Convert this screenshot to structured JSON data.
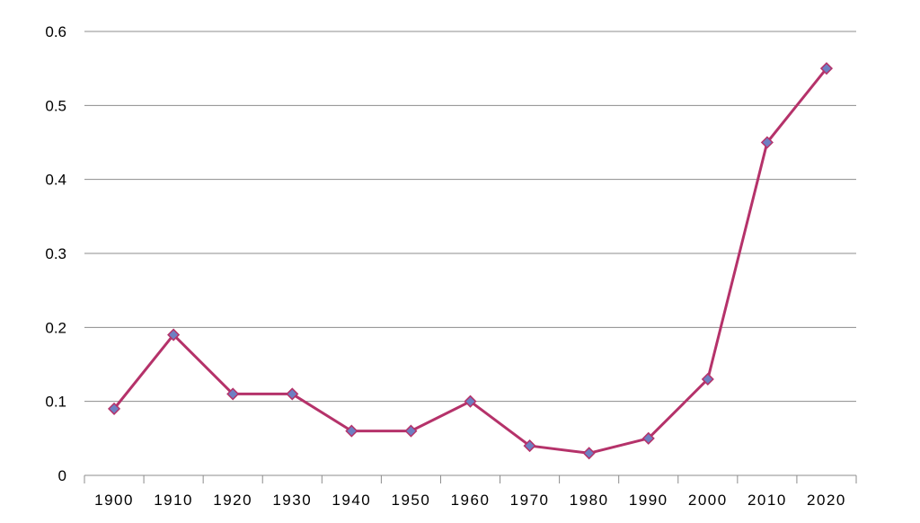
{
  "chart_data": {
    "type": "line",
    "title": "",
    "xlabel": "",
    "ylabel": "",
    "categories": [
      "1900",
      "1910",
      "1920",
      "1930",
      "1940",
      "1950",
      "1960",
      "1970",
      "1980",
      "1990",
      "2000",
      "2010",
      "2020"
    ],
    "series": [
      {
        "values": [
          0.09,
          0.19,
          0.11,
          0.11,
          0.06,
          0.06,
          0.1,
          0.04,
          0.03,
          0.05,
          0.13,
          0.45,
          0.55
        ]
      }
    ],
    "ylim": [
      0,
      0.6
    ],
    "yticks": [
      "0",
      "0.1",
      "0.2",
      "0.3",
      "0.4",
      "0.5",
      "0.6"
    ],
    "grid": "horizontal",
    "legend": "none",
    "colors": {
      "line": "#b5326a",
      "marker_fill": "#6e7fc2",
      "marker_stroke": "#b5326a",
      "grid": "#8c8c8c",
      "axis": "#8c8c8c"
    }
  }
}
